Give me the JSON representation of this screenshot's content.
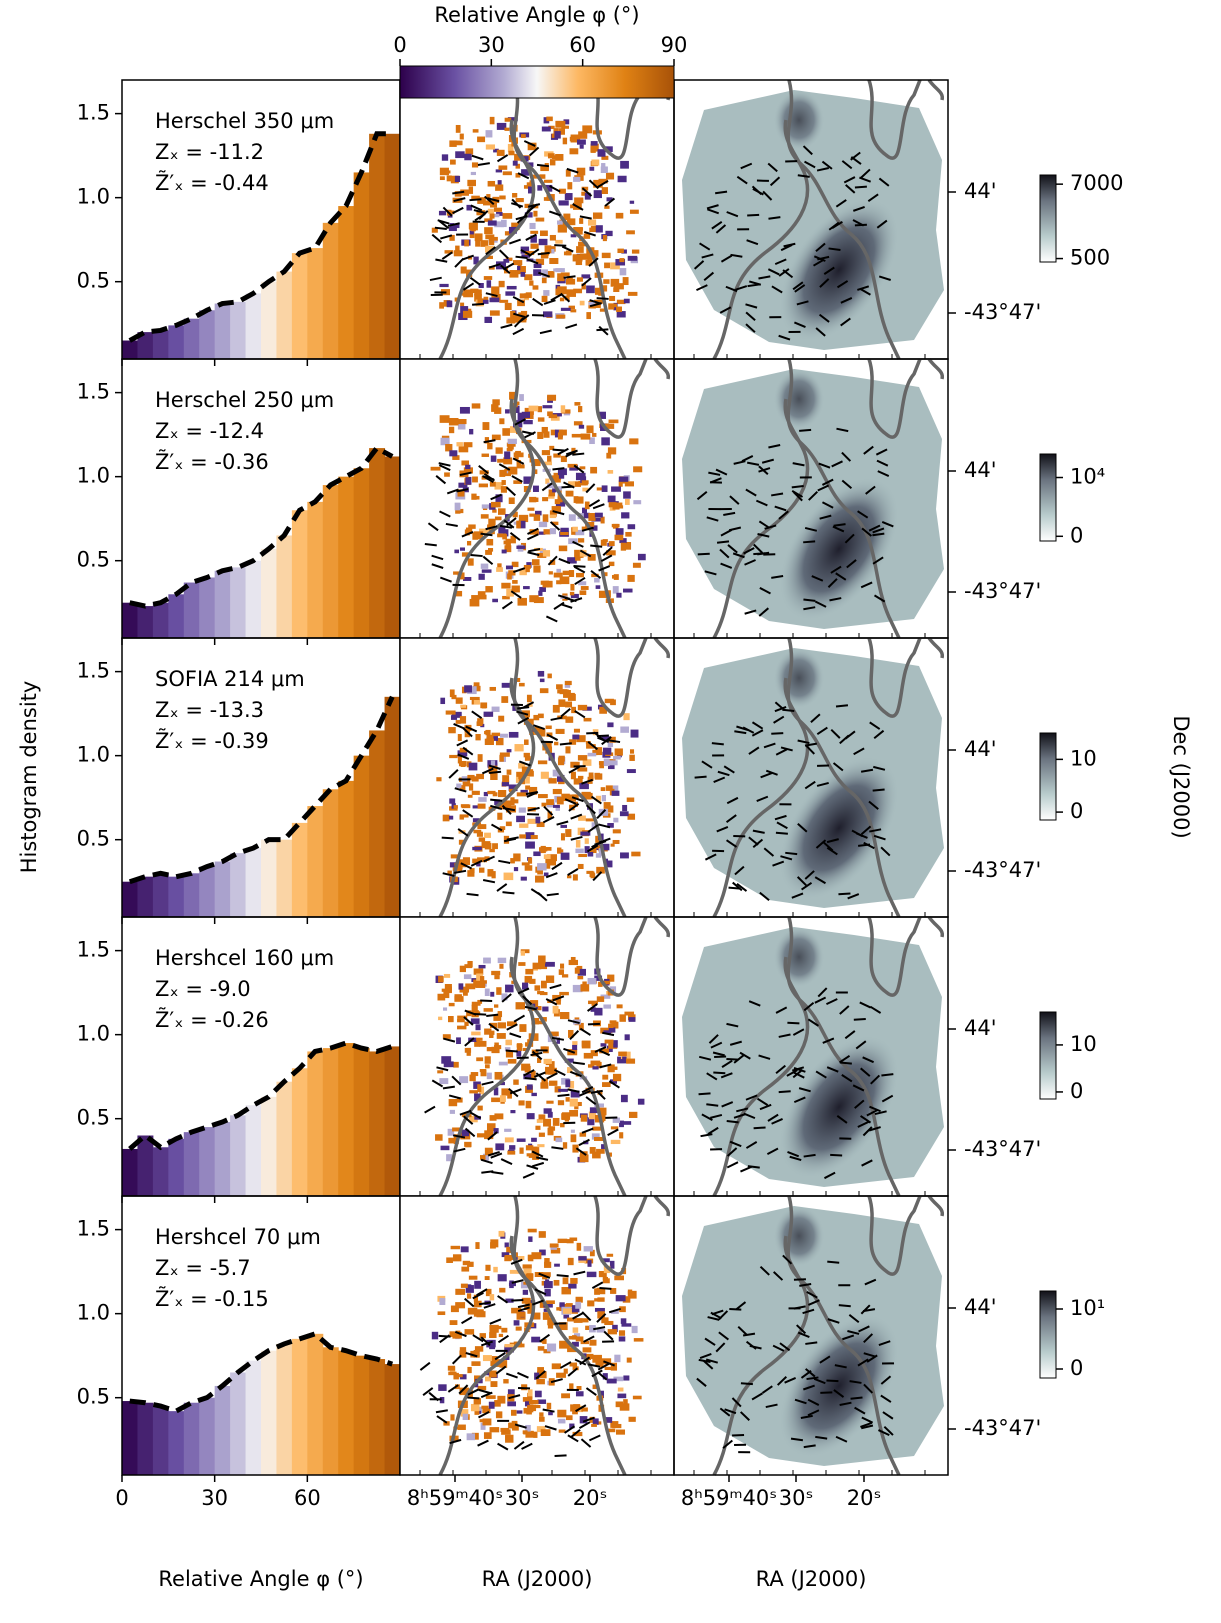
{
  "chart_data": [
    {
      "type": "histogram",
      "annotations": [
        "Herschel 350 μm",
        "Zₓ = -11.2",
        "Z̃′ₓ = -0.44"
      ],
      "bins": [
        0,
        5,
        10,
        15,
        20,
        25,
        30,
        35,
        40,
        45,
        50,
        55,
        60,
        65,
        70,
        75,
        80,
        85,
        90
      ],
      "values": [
        0.15,
        0.2,
        0.21,
        0.24,
        0.28,
        0.33,
        0.37,
        0.38,
        0.43,
        0.5,
        0.56,
        0.67,
        0.7,
        0.85,
        0.95,
        1.15,
        1.38,
        1.38
      ],
      "ylim": [
        0.04,
        1.7
      ],
      "yticks": [
        0.5,
        {
          "value": 1,
          "label": "1.0"
        },
        1.5
      ]
    },
    {
      "type": "histogram",
      "annotations": [
        "Herschel 250 μm",
        "Zₓ = -12.4",
        "Z̃′ₓ = -0.36"
      ],
      "bins": [
        0,
        5,
        10,
        15,
        20,
        25,
        30,
        35,
        40,
        45,
        50,
        55,
        60,
        65,
        70,
        75,
        80,
        85,
        90
      ],
      "values": [
        0.25,
        0.23,
        0.25,
        0.3,
        0.37,
        0.4,
        0.44,
        0.46,
        0.5,
        0.57,
        0.65,
        0.8,
        0.85,
        0.95,
        1.0,
        1.05,
        1.17,
        1.12
      ],
      "ylim": [
        0.04,
        1.7
      ],
      "yticks": [
        0.5,
        {
          "value": 1,
          "label": "1.0"
        },
        1.5
      ]
    },
    {
      "type": "histogram",
      "annotations": [
        "SOFIA 214 μm",
        "Zₓ = -13.3",
        "Z̃′ₓ = -0.39"
      ],
      "bins": [
        0,
        5,
        10,
        15,
        20,
        25,
        30,
        35,
        40,
        45,
        50,
        55,
        60,
        65,
        70,
        75,
        80,
        85,
        90
      ],
      "values": [
        0.25,
        0.28,
        0.3,
        0.28,
        0.3,
        0.34,
        0.37,
        0.42,
        0.45,
        0.5,
        0.5,
        0.6,
        0.7,
        0.8,
        0.85,
        1.0,
        1.15,
        1.35
      ],
      "ylim": [
        0.04,
        1.7
      ],
      "yticks": [
        0.5,
        {
          "value": 1,
          "label": "1.0"
        },
        1.5
      ]
    },
    {
      "type": "histogram",
      "annotations": [
        "Hershcel 160 μm",
        "Zₓ = -9.0",
        "Z̃′ₓ = -0.26"
      ],
      "bins": [
        0,
        5,
        10,
        15,
        20,
        25,
        30,
        35,
        40,
        45,
        50,
        55,
        60,
        65,
        70,
        75,
        80,
        85,
        90
      ],
      "values": [
        0.32,
        0.4,
        0.33,
        0.38,
        0.42,
        0.45,
        0.48,
        0.52,
        0.58,
        0.63,
        0.72,
        0.8,
        0.9,
        0.92,
        0.95,
        0.92,
        0.9,
        0.93
      ],
      "ylim": [
        0.04,
        1.7
      ],
      "yticks": [
        0.5,
        {
          "value": 1,
          "label": "1.0"
        },
        1.5
      ]
    },
    {
      "type": "histogram",
      "annotations": [
        "Hershcel 70 μm",
        "Zₓ = -5.7",
        "Z̃′ₓ = -0.15"
      ],
      "bins": [
        0,
        5,
        10,
        15,
        20,
        25,
        30,
        35,
        40,
        45,
        50,
        55,
        60,
        65,
        70,
        75,
        80,
        85,
        90
      ],
      "values": [
        0.48,
        0.47,
        0.45,
        0.42,
        0.47,
        0.5,
        0.57,
        0.65,
        0.72,
        0.78,
        0.82,
        0.85,
        0.88,
        0.8,
        0.78,
        0.75,
        0.73,
        0.7
      ],
      "ylim": [
        0.04,
        1.7
      ],
      "yticks": [
        0.5,
        {
          "value": 1,
          "label": "1.0"
        },
        1.5
      ],
      "xlim": [
        0,
        90
      ],
      "xticks": [
        0,
        30,
        60
      ],
      "x_label": "Relative Angle φ (°)"
    }
  ],
  "y_label": "Histogram density",
  "angle_colorbar": {
    "label": "Relative Angle φ (°)",
    "lim": [
      0,
      90
    ],
    "ticks": [
      0,
      30,
      60,
      90
    ]
  },
  "maps": {
    "ra_label": "RA (J2000)",
    "dec_label": "Dec (J2000)",
    "ra_ticks": [
      "8ʰ59ᵐ40ˢ",
      "30ˢ",
      "20ˢ"
    ],
    "dec_ticks": [
      "44'",
      "-43°47'"
    ],
    "intensity_colorbars": [
      {
        "lim": [
          200,
          7800
        ],
        "ticks": [
          500,
          7000
        ]
      },
      {
        "lim": [
          -800,
          14000
        ],
        "ticks": [
          0,
          {
            "value": 10000,
            "label": "10⁴"
          }
        ]
      },
      {
        "lim": [
          -1.5,
          15
        ],
        "ticks": [
          0,
          10
        ]
      },
      {
        "lim": [
          -1.5,
          17
        ],
        "ticks": [
          0,
          10
        ]
      },
      {
        "lim": [
          -1.5,
          13
        ],
        "ticks": [
          0,
          {
            "value": 10,
            "label": "10¹"
          }
        ]
      }
    ]
  }
}
